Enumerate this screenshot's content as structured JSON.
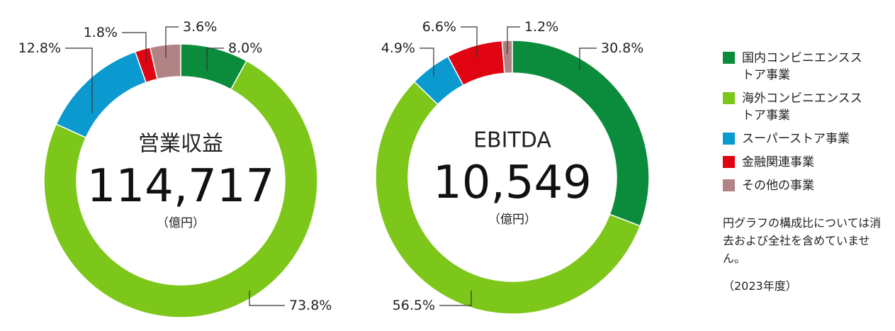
{
  "colors": {
    "domestic_cvs": "#0a8c3c",
    "overseas_cvs": "#7dc71b",
    "superstore": "#0a9ad0",
    "financial": "#e00412",
    "other": "#b08484"
  },
  "chart_data": [
    {
      "type": "pie",
      "title": "営業収益",
      "total": "114,717",
      "unit": "（億円）",
      "slices": [
        {
          "category": "国内コンビニエンスストア事業",
          "value": 8.0,
          "label": "8.0%",
          "color": "#0a8c3c"
        },
        {
          "category": "海外コンビニエンスストア事業",
          "value": 73.8,
          "label": "73.8%",
          "color": "#7dc71b"
        },
        {
          "category": "スーパーストア事業",
          "value": 12.8,
          "label": "12.8%",
          "color": "#0a9ad0"
        },
        {
          "category": "金融関連事業",
          "value": 1.8,
          "label": "1.8%",
          "color": "#e00412"
        },
        {
          "category": "その他の事業",
          "value": 3.6,
          "label": "3.6%",
          "color": "#b08484"
        }
      ]
    },
    {
      "type": "pie",
      "title": "EBITDA",
      "total": "10,549",
      "unit": "（億円）",
      "slices": [
        {
          "category": "国内コンビニエンスストア事業",
          "value": 30.8,
          "label": "30.8%",
          "color": "#0a8c3c"
        },
        {
          "category": "海外コンビニエンスストア事業",
          "value": 56.5,
          "label": "56.5%",
          "color": "#7dc71b"
        },
        {
          "category": "スーパーストア事業",
          "value": 4.9,
          "label": "4.9%",
          "color": "#0a9ad0"
        },
        {
          "category": "金融関連事業",
          "value": 6.6,
          "label": "6.6%",
          "color": "#e00412"
        },
        {
          "category": "その他の事業",
          "value": 1.2,
          "label": "1.2%",
          "color": "#b08484"
        }
      ]
    }
  ],
  "legend": [
    {
      "label": "国内コンビニエンスストア事業",
      "color": "#0a8c3c"
    },
    {
      "label": "海外コンビニエンスストア事業",
      "color": "#7dc71b"
    },
    {
      "label": "スーパーストア事業",
      "color": "#0a9ad0"
    },
    {
      "label": "金融関連事業",
      "color": "#e00412"
    },
    {
      "label": "その他の事業",
      "color": "#b08484"
    }
  ],
  "note": "円グラフの構成比については消去および全社を含めていません。",
  "year": "（2023年度）"
}
